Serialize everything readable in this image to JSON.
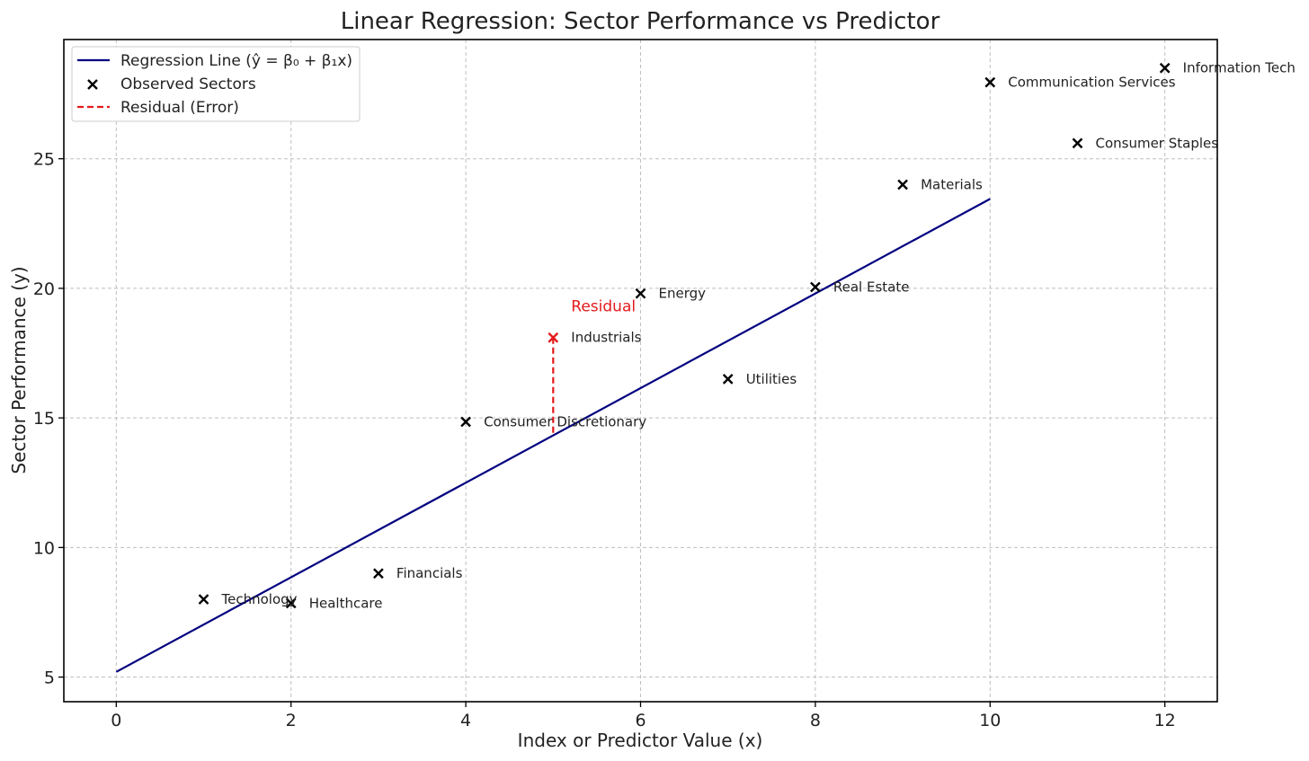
{
  "chart_data": {
    "type": "scatter",
    "title": "Linear Regression: Sector Performance vs Predictor",
    "xlabel": "Index or Predictor Value (x)",
    "ylabel": "Sector Performance (y)",
    "xlim": [
      -0.6,
      12.6
    ],
    "ylim": [
      4.05,
      29.6
    ],
    "xticks": [
      0,
      2,
      4,
      6,
      8,
      10,
      12
    ],
    "yticks": [
      5,
      10,
      15,
      20,
      25
    ],
    "grid": true,
    "legend_position": "upper-left",
    "legend": [
      {
        "label": "Regression Line (ŷ = β₀ + β₁x)",
        "kind": "line",
        "color": "#000080"
      },
      {
        "label": "Observed Sectors",
        "kind": "marker",
        "color": "#000000"
      },
      {
        "label": "Residual (Error)",
        "kind": "dashed",
        "color": "#e31a1c"
      }
    ],
    "points": [
      {
        "x": 1,
        "y": 8.0,
        "label": "Technology"
      },
      {
        "x": 2,
        "y": 7.85,
        "label": "Healthcare"
      },
      {
        "x": 3,
        "y": 9.0,
        "label": "Financials"
      },
      {
        "x": 4,
        "y": 14.85,
        "label": "Consumer Discretionary"
      },
      {
        "x": 5,
        "y": 18.1,
        "label": "Industrials",
        "highlight": true
      },
      {
        "x": 6,
        "y": 19.8,
        "label": "Energy"
      },
      {
        "x": 7,
        "y": 16.5,
        "label": "Utilities"
      },
      {
        "x": 8,
        "y": 20.05,
        "label": "Real Estate"
      },
      {
        "x": 9,
        "y": 24.0,
        "label": "Materials"
      },
      {
        "x": 10,
        "y": 27.95,
        "label": "Communication Services"
      },
      {
        "x": 11,
        "y": 25.6,
        "label": "Consumer Staples"
      },
      {
        "x": 12,
        "y": 28.5,
        "label": "Information Tech"
      }
    ],
    "regression_line": {
      "x": [
        0,
        10
      ],
      "y": [
        5.2,
        23.45
      ],
      "color": "#000080"
    },
    "residual": {
      "x": 5,
      "y_observed": 18.1,
      "y_predicted": 14.35,
      "color": "#e31a1c",
      "label": "Residual"
    }
  }
}
